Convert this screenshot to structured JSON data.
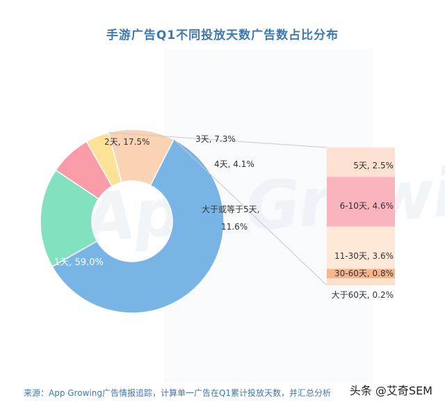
{
  "title": "手游广告Q1不同投放天数广告数占比分布",
  "source": "来源：App Growing广告情报追踪，计算单一广告在Q1累计投放天数，并汇总分析",
  "credit": "头条 @艾奇SEM",
  "watermark": "App Growing",
  "colors": {
    "1day": "#78b4e6",
    "2day": "#82e1be",
    "3day": "#fa9baa",
    "4day": "#fde196",
    "5plus": "#fad2b4",
    "b_5": "#fde1d2",
    "b_6_10": "#fab4be",
    "b_11_30": "#fee8d8",
    "b_30_60": "#f9b48a",
    "b_60plus": "#fbe0cc"
  },
  "chart_data": {
    "type": "pie",
    "donut": true,
    "title": "手游广告Q1不同投放天数广告数占比分布",
    "slices": [
      {
        "label": "1天, 59.0%",
        "value": 59.0,
        "color_key": "1day"
      },
      {
        "label": "2天, 17.5%",
        "value": 17.5,
        "color_key": "2day"
      },
      {
        "label": "3天, 7.3%",
        "value": 7.3,
        "color_key": "3day"
      },
      {
        "label": "4天, 4.1%",
        "value": 4.1,
        "color_key": "4day"
      },
      {
        "label": "大于或等于5天,",
        "label2": "11.6%",
        "value": 11.6,
        "color_key": "5plus"
      }
    ],
    "breakdown": {
      "parent": "大于或等于5天",
      "segments": [
        {
          "label": "5天, 2.5%",
          "value": 2.5,
          "color_key": "b_5"
        },
        {
          "label": "6-10天, 4.6%",
          "value": 4.6,
          "color_key": "b_6_10"
        },
        {
          "label": "11-30天, 3.6%",
          "value": 3.6,
          "color_key": "b_11_30"
        },
        {
          "label": "30-60天, 0.8%",
          "value": 0.8,
          "color_key": "b_30_60"
        },
        {
          "label": "大于60天, 0.2%",
          "value": 0.2,
          "color_key": "b_60plus"
        }
      ]
    }
  }
}
